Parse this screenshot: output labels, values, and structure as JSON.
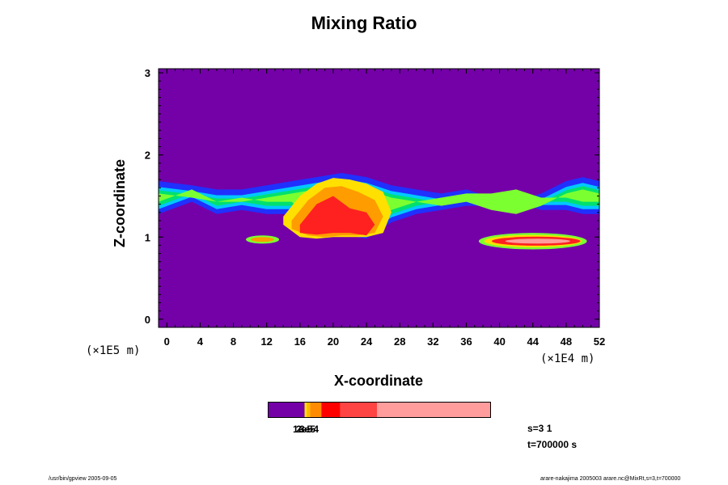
{
  "chart_data": {
    "type": "heatmap",
    "title": "Mixing Ratio",
    "xlabel": "X-coordinate",
    "ylabel": "Z-coordinate",
    "x_scale_label": "(×1E4 m)",
    "y_scale_label": "(×1E5 m)",
    "xlim": [
      -1,
      52
    ],
    "ylim": [
      -0.1,
      3.05
    ],
    "x_ticks": [
      0,
      4,
      8,
      12,
      16,
      20,
      24,
      28,
      32,
      36,
      40,
      44,
      48,
      52
    ],
    "x_tick_labels": [
      "0",
      "4",
      "8",
      "12",
      "16",
      "20",
      "24",
      "28",
      "32",
      "36",
      "40",
      "44",
      "48",
      "52"
    ],
    "y_ticks": [
      0,
      1,
      2,
      3
    ],
    "y_tick_labels": [
      "0",
      "1",
      "2",
      "3"
    ],
    "background_color": "#7400a8",
    "cloud_layers": [
      {
        "name": "upper-band",
        "x": [
          -1,
          3,
          6,
          9,
          12,
          15,
          18,
          21,
          24,
          27,
          30,
          33,
          36,
          39,
          42,
          45,
          48,
          50,
          52
        ],
        "z_low": [
          1.3,
          1.45,
          1.3,
          1.35,
          1.3,
          1.3,
          1.05,
          1.05,
          1.0,
          1.2,
          1.3,
          1.35,
          1.4,
          1.4,
          1.45,
          1.35,
          1.35,
          1.3,
          1.3
        ],
        "z_high": [
          1.65,
          1.6,
          1.55,
          1.55,
          1.6,
          1.65,
          1.7,
          1.75,
          1.7,
          1.6,
          1.55,
          1.5,
          1.55,
          1.45,
          1.4,
          1.5,
          1.65,
          1.7,
          1.65
        ]
      },
      {
        "name": "lower-left-patch",
        "x": [
          9.5,
          13.5
        ],
        "z": [
          0.92,
          1.02
        ]
      },
      {
        "name": "lower-right-patch",
        "x": [
          37.5,
          50.5
        ],
        "z": [
          0.85,
          1.05
        ]
      }
    ],
    "colorbar": {
      "colors": [
        "#7400a8",
        "#ffe000",
        "#ffb800",
        "#ff8c00",
        "#ff0000",
        "#ff4444",
        "#ff9c9c"
      ],
      "fractions": [
        0.165,
        0.01,
        0.015,
        0.05,
        0.085,
        0.165,
        0.51
      ],
      "labels": [
        "1e-5",
        "2e-5",
        "3e-4"
      ]
    },
    "grid": false,
    "legend": "none"
  },
  "info": {
    "s_label": "s=3 1",
    "t_label": "t=700000 s"
  },
  "footer": {
    "left": "/usr/bin/gpview 2005-09-05",
    "right": "arare-nakajima 2005003 arare.nc@MixRt,s=3,t=700000"
  }
}
